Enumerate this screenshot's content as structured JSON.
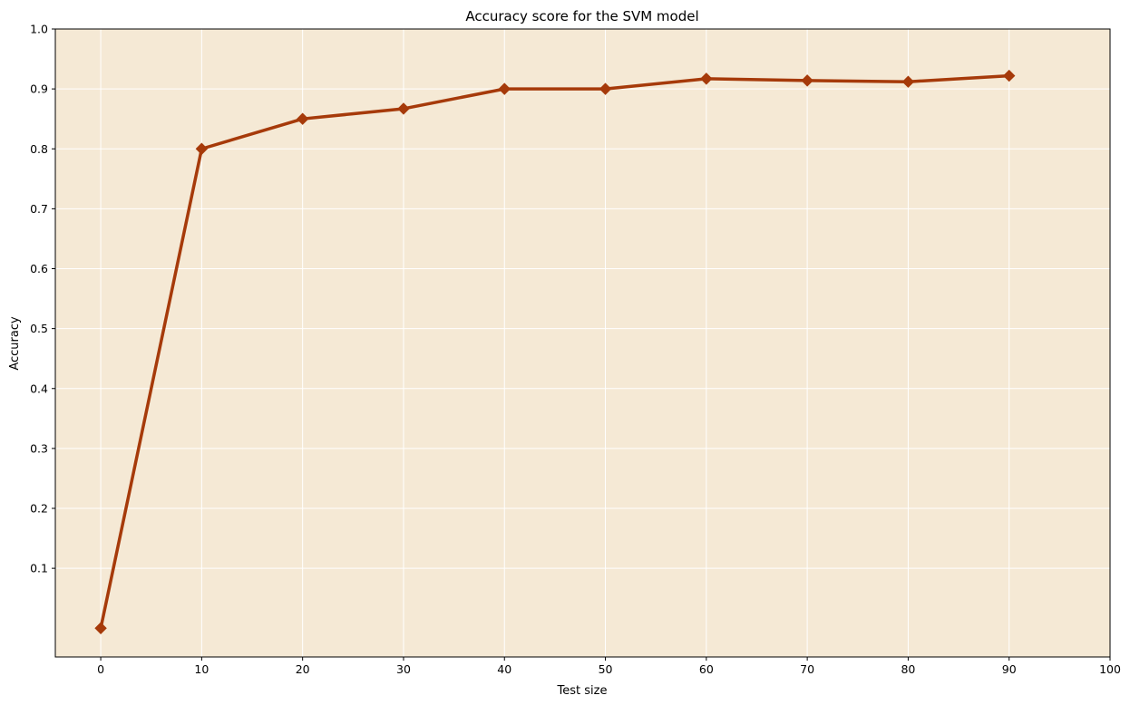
{
  "chart_data": {
    "type": "line",
    "title": "Accuracy score for the SVM model",
    "xlabel": "Test size",
    "ylabel": "Accuracy",
    "x": [
      0,
      10,
      20,
      30,
      40,
      50,
      60,
      70,
      80,
      90
    ],
    "series": [
      {
        "values": [
          0.0,
          0.8,
          0.85,
          0.867,
          0.9,
          0.9,
          0.917,
          0.914,
          0.912,
          0.922
        ]
      }
    ],
    "xlim": [
      -4.5,
      100
    ],
    "ylim": [
      -0.048,
      1.0
    ],
    "xticks": [
      "0",
      "10",
      "20",
      "30",
      "40",
      "50",
      "60",
      "70",
      "80",
      "90",
      "100"
    ],
    "yticks": [
      "0.1",
      "0.2",
      "0.3",
      "0.4",
      "0.5",
      "0.6",
      "0.7",
      "0.8",
      "0.9",
      "1.0"
    ],
    "grid": true,
    "marker": "diamond",
    "colors": {
      "line": "#a63a0a",
      "background": "#f5e9d5",
      "grid": "#ffffff"
    }
  }
}
